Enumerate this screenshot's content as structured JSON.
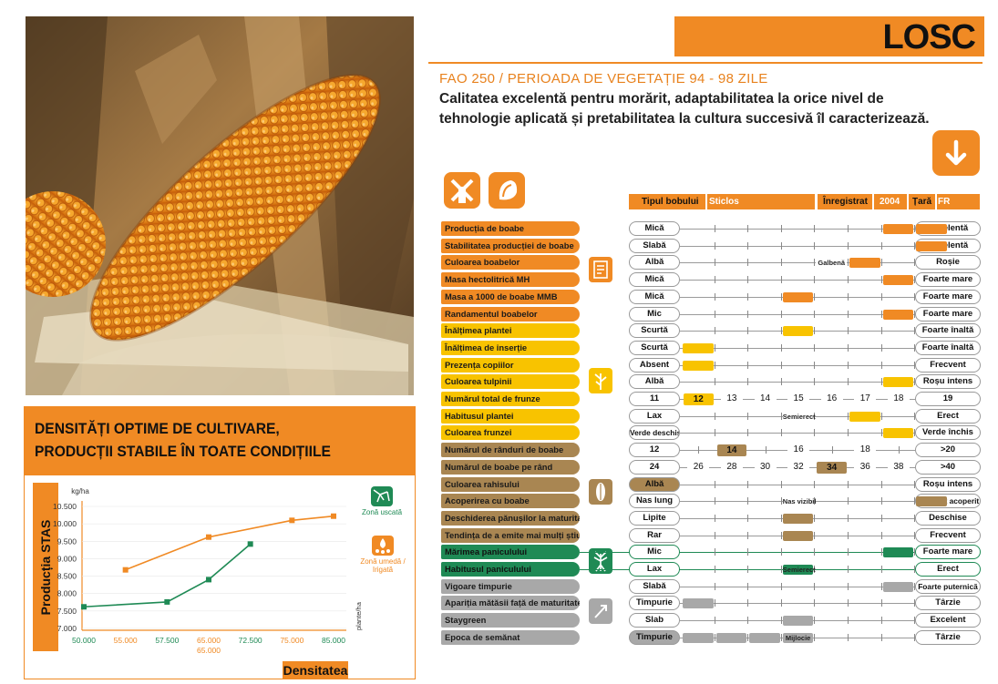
{
  "product_name": "LOSC",
  "fao": "FAO 250 / PERIOADA DE VEGETAȚIE 94 - 98 ZILE",
  "description": "Calitatea excelentă pentru morărit, adaptabilitatea la orice nivel de tehnologie aplicată și pretabilitatea la cultura succesivă îl caracterizează.",
  "density_panel": {
    "title_line1": "DENSITĂȚI OPTIME DE CULTIVARE,",
    "title_line2": "PRODUCȚII STABILE ÎN TOATE CONDIȚIILE",
    "legend_dry": "Zonă uscată",
    "legend_wet_1": "Zonă umedă /",
    "legend_wet_2": "Irigată"
  },
  "chart_data": {
    "type": "line",
    "xlabel": "Densitatea",
    "x_unit": "plante/ha",
    "ylabel": "Producția STAS",
    "y_unit": "kg/ha",
    "ylim": [
      7000,
      10500
    ],
    "y_ticks": [
      "10.500",
      "10.000",
      "9.500",
      "9.000",
      "8.500",
      "8.000",
      "7.500",
      "7.000"
    ],
    "y_tick_values": [
      10500,
      10000,
      9500,
      9000,
      8500,
      8000,
      7500,
      7000
    ],
    "x_ticks": [
      "50.000",
      "55.000",
      "57.500",
      "65.000",
      "72.500",
      "75.000",
      "85.000"
    ],
    "x_tick_values": [
      50000,
      55000,
      57500,
      65000,
      72500,
      75000,
      85000
    ],
    "x_extra_label": "65.000",
    "series": [
      {
        "name": "Zonă uscată",
        "color": "#1f8a55",
        "x": [
          50000,
          57500,
          65000,
          72500
        ],
        "y": [
          7620,
          7760,
          8400,
          9420
        ]
      },
      {
        "name": "Zonă umedă / Irigată",
        "color": "#f08a24",
        "x": [
          55000,
          65000,
          75000,
          85000
        ],
        "y": [
          8680,
          9620,
          10100,
          10220
        ]
      }
    ]
  },
  "legend_strip": {
    "tip_bobului_label": "Tipul bobului",
    "tip_bobului_value": "Sticlos",
    "inregistrat_label": "Înregistrat",
    "inregistrat_value": "2004",
    "tara_label": "Țară",
    "tara_value": "FR"
  },
  "colors": {
    "orange": "#f08a24",
    "yellow": "#f8c300",
    "brown": "#a98652",
    "green": "#1f8a55",
    "gray": "#a8a8a8"
  },
  "traits": [
    {
      "label": "Producția de boabe",
      "left": "Mică",
      "right": "Excelentă",
      "group": "orange",
      "pos": [
        7,
        8
      ]
    },
    {
      "label": "Stabilitatea producției de boabe",
      "left": "Slabă",
      "right": "Excelentă",
      "group": "orange",
      "pos": [
        8
      ]
    },
    {
      "label": "Culoarea boabelor",
      "left": "Albă",
      "right": "Roșie",
      "group": "orange",
      "pos": [
        6
      ],
      "mid": "Galbenă",
      "mid_col": 5
    },
    {
      "label": "Masa hectolitrică MH",
      "left": "Mică",
      "right": "Foarte mare",
      "group": "orange",
      "pos": [
        7
      ]
    },
    {
      "label": "Masa a 1000 de boabe MMB",
      "left": "Mică",
      "right": "Foarte mare",
      "group": "orange",
      "pos": [
        4
      ]
    },
    {
      "label": "Randamentul boabelor",
      "left": "Mic",
      "right": "Foarte mare",
      "group": "orange",
      "pos": [
        7
      ]
    },
    {
      "label": "Înălțimea plantei",
      "left": "Scurtă",
      "right": "Foarte înaltă",
      "group": "yellow",
      "pos": [
        4
      ]
    },
    {
      "label": "Înălțimea de inserție",
      "left": "Scurtă",
      "right": "Foarte înaltă",
      "group": "yellow",
      "pos": [
        1
      ]
    },
    {
      "label": "Prezența copiilor",
      "left": "Absent",
      "right": "Frecvent",
      "group": "yellow",
      "pos": [
        1
      ]
    },
    {
      "label": "Culoarea tulpinii",
      "left": "Albă",
      "right": "Roșu intens",
      "group": "yellow",
      "pos": [
        7
      ]
    },
    {
      "label": "Numărul total de frunze",
      "left": "11",
      "right": "19",
      "group": "yellow",
      "numbers": [
        "12",
        "13",
        "14",
        "15",
        "16",
        "17",
        "18"
      ],
      "highlight": 0
    },
    {
      "label": "Habitusul plantei",
      "left": "Lax",
      "right": "Erect",
      "group": "yellow",
      "pos": [
        6
      ],
      "mid": "Semierect",
      "mid_col": 4
    },
    {
      "label": "Culoarea frunzei",
      "left": "Verde deschis",
      "right": "Verde închis",
      "group": "yellow",
      "pos": [
        7
      ]
    },
    {
      "label": "Numărul de rânduri de boabe",
      "left": "12",
      "right": ">20",
      "group": "brown",
      "numbers": [
        "",
        "14",
        "",
        "16",
        "",
        "18",
        ""
      ],
      "highlight": 1
    },
    {
      "label": "Numărul de boabe pe rând",
      "left": "24",
      "right": ">40",
      "group": "brown",
      "numbers": [
        "26",
        "28",
        "30",
        "32",
        "34",
        "36",
        "38"
      ],
      "highlight": 4
    },
    {
      "label": "Culoarea rahisului",
      "left": "Albă",
      "right": "Roșu intens",
      "group": "brown",
      "pos": [],
      "left_fill": true
    },
    {
      "label": "Acoperirea cu boabe",
      "left": "Nas lung",
      "right": "Complet acoperit",
      "group": "brown",
      "pos": [
        8
      ],
      "mid": "Nas vizibil",
      "mid_col": 4
    },
    {
      "label": "Deschiderea pănușilor la maturitate",
      "left": "Lipite",
      "right": "Deschise",
      "group": "brown",
      "pos": [
        4
      ]
    },
    {
      "label": "Tendința de a emite mai mulți știuleți",
      "left": "Rar",
      "right": "Frecvent",
      "group": "brown",
      "pos": [
        4
      ]
    },
    {
      "label": "Mărimea paniculului",
      "left": "Mic",
      "right": "Foarte mare",
      "group": "green",
      "pos": [
        7
      ],
      "boxed": true
    },
    {
      "label": "Habitusul paniculului",
      "left": "Lax",
      "right": "Erect",
      "group": "green",
      "pos": [],
      "mid": "Semierect",
      "mid_col": 4,
      "mid_filled": true,
      "boxed": true
    },
    {
      "label": "Vigoare timpurie",
      "left": "Slabă",
      "right": "Foarte puternică",
      "group": "gray",
      "pos": [
        7
      ]
    },
    {
      "label": "Apariția mătăsii față de maturitate",
      "left": "Timpurie",
      "right": "Târzie",
      "group": "gray",
      "pos": [
        1
      ]
    },
    {
      "label": "Staygreen",
      "left": "Slab",
      "right": "Excelent",
      "group": "gray",
      "pos": [
        4
      ]
    },
    {
      "label": "Epoca de semănat",
      "left": "Timpurie",
      "right": "Târzie",
      "group": "gray",
      "pos": [
        1,
        2,
        3
      ],
      "mid": "Mijlocie",
      "mid_col": 4,
      "mid_filled": true,
      "left_fill": true
    }
  ]
}
